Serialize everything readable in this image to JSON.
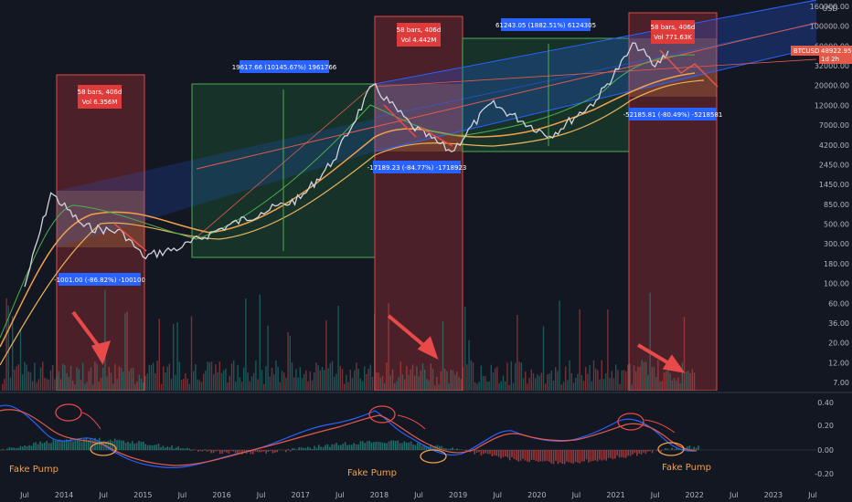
{
  "chart_data": {
    "type": "line",
    "symbol_label": "BTCUSD",
    "currency": "USD",
    "price_label": "48922.95",
    "price_sub": "1d 2h",
    "price_axis": {
      "scale": "log",
      "ticks": [
        "160000.00",
        "100000.00",
        "60000.00",
        "32000.00",
        "20000.00",
        "12000.00",
        "7000.00",
        "4200.00",
        "2450.00",
        "1450.00",
        "850.00",
        "500.00",
        "300.00",
        "180.00",
        "100.00",
        "60.00",
        "36.00",
        "20.00",
        "12.00",
        "7.00"
      ]
    },
    "oscillator_axis": {
      "ticks": [
        "0.40",
        "0.20",
        "0.00",
        "-0.20"
      ]
    },
    "time_axis": [
      "Jul",
      "2014",
      "Jul",
      "2015",
      "Jul",
      "2016",
      "Jul",
      "2017",
      "Jul",
      "2018",
      "Jul",
      "2019",
      "Jul",
      "2020",
      "Jul",
      "2021",
      "Jul",
      "2022",
      "Jul",
      "2023",
      "Jul"
    ],
    "annotations": {
      "cycle1_bars": "58 bars, 406d",
      "cycle1_vol": "Vol 6.356M",
      "cycle1_drop": "-1001.00 (-86.82%) -100100",
      "cycle1_rise": "19617.66 (10145.67%) 1961766",
      "cycle2_bars": "58 bars, 406d",
      "cycle2_vol": "Vol 4.442M",
      "cycle2_drop": "-17189.23 (-84.77%) -1718923",
      "cycle2_rise": "61243.05 (1882.51%) 6124305",
      "cycle3_bars": "58 bars, 406d",
      "cycle3_vol": "Vol 771.63K",
      "cycle3_drop": "-52185.81 (-80.49%) -5218581"
    },
    "fake_pump_labels": [
      "Fake Pump",
      "Fake Pump",
      "Fake Pump"
    ],
    "series": [
      {
        "x": [
          "2013-07",
          "2013-11",
          "2014-04",
          "2014-10",
          "2015-01",
          "2015-07",
          "2016-01",
          "2016-07",
          "2017-01",
          "2017-06",
          "2017-12",
          "2018-06",
          "2018-12",
          "2019-06",
          "2020-03",
          "2020-10",
          "2021-04",
          "2021-07",
          "2021-09"
        ],
        "values": [
          90,
          1100,
          450,
          380,
          200,
          260,
          430,
          650,
          950,
          2600,
          19500,
          6500,
          3300,
          12000,
          5000,
          13000,
          60000,
          32000,
          48922.95
        ]
      }
    ]
  }
}
